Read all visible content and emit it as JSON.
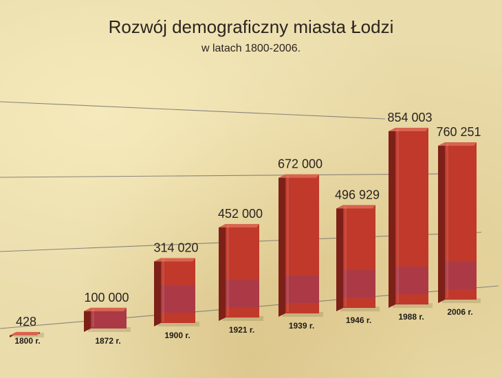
{
  "title": "Rozwój demograficzny miasta Łodzi",
  "subtitle": "w latach 1800-2006.",
  "colors": {
    "bar_front": "#c0392b",
    "bar_side": "#7d2018",
    "bar_top": "#d8644f",
    "grid": "#7d7a74"
  },
  "chart_data": {
    "type": "bar",
    "title": "Rozwój demograficzny miasta Łodzi",
    "subtitle": "w latach 1800-2006.",
    "categories": [
      "1800 r.",
      "1872 r.",
      "1900 r.",
      "1921 r.",
      "1939 r.",
      "1946 r.",
      "1988 r.",
      "2006 r."
    ],
    "values": [
      428,
      100000,
      314020,
      452000,
      672000,
      496929,
      854003,
      760251
    ],
    "value_labels": [
      "428",
      "100 000",
      "314 020",
      "452 000",
      "672 000",
      "496 929",
      "854 003",
      "760 251"
    ],
    "style": "3d",
    "grid": true,
    "legend": "none"
  }
}
